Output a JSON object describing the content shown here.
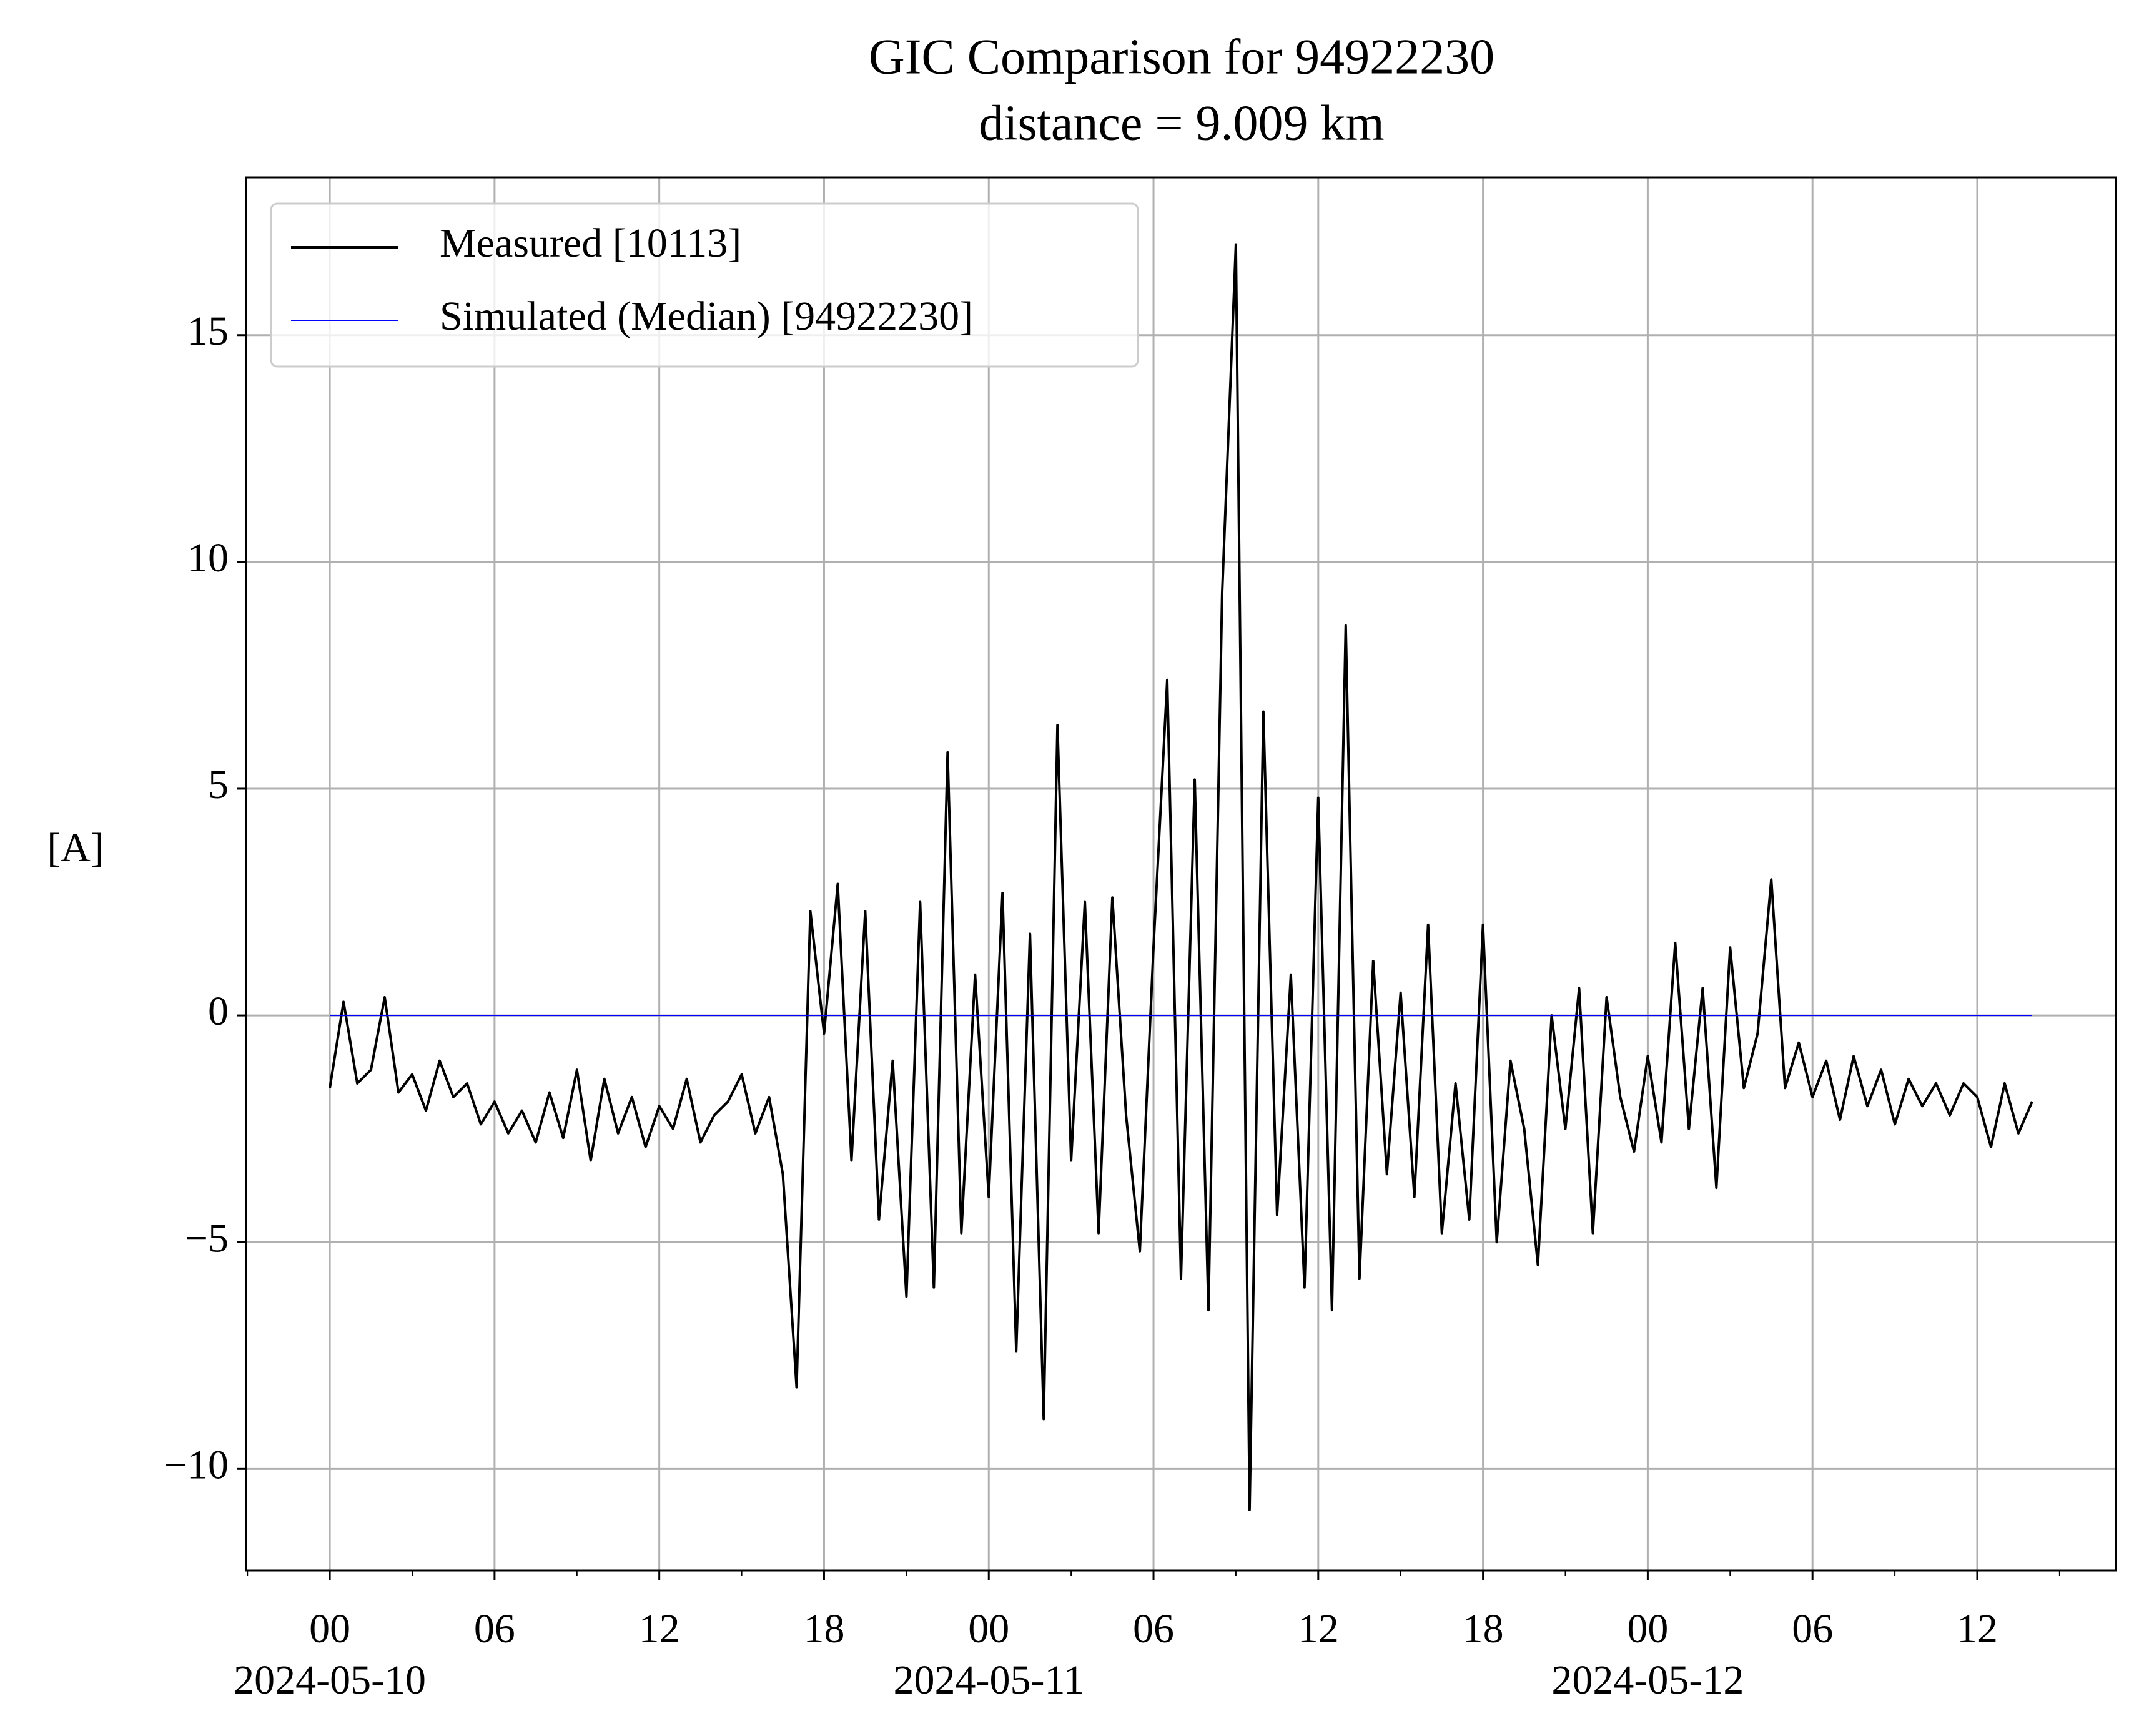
{
  "chart_data": {
    "type": "line",
    "title": "GIC Comparison for 94922230",
    "subtitle": "distance = 9.009 km",
    "ylabel": "[A]",
    "xlim": [
      -3.05,
      65.05
    ],
    "ylim": [
      -12.24,
      18.48
    ],
    "xticks": [
      {
        "value": 0,
        "label": "00"
      },
      {
        "value": 6,
        "label": "06"
      },
      {
        "value": 12,
        "label": "12"
      },
      {
        "value": 18,
        "label": "18"
      },
      {
        "value": 24,
        "label": "00"
      },
      {
        "value": 30,
        "label": "06"
      },
      {
        "value": 36,
        "label": "12"
      },
      {
        "value": 42,
        "label": "18"
      },
      {
        "value": 48,
        "label": "00"
      },
      {
        "value": 54,
        "label": "06"
      },
      {
        "value": 60,
        "label": "12"
      }
    ],
    "xtick_dates": [
      {
        "value": 0,
        "label": "2024-05-10"
      },
      {
        "value": 24,
        "label": "2024-05-11"
      },
      {
        "value": 48,
        "label": "2024-05-12"
      }
    ],
    "xminorticks": [
      -3,
      3,
      9,
      15,
      21,
      27,
      33,
      39,
      45,
      51,
      57,
      63
    ],
    "yticks": [
      {
        "value": -10,
        "label": "−10"
      },
      {
        "value": -5,
        "label": "−5"
      },
      0,
      5,
      10,
      15
    ],
    "grid": true,
    "legend": "upper left",
    "series": [
      {
        "name": "Measured [10113]",
        "color": "#000000",
        "x": [
          0,
          0.5,
          1,
          1.5,
          2,
          2.5,
          3,
          3.5,
          4,
          4.5,
          5,
          5.5,
          6,
          6.5,
          7,
          7.5,
          8,
          8.5,
          9,
          9.5,
          10,
          10.5,
          11,
          11.5,
          12,
          12.5,
          13,
          13.5,
          14,
          14.5,
          15,
          15.5,
          16,
          16.5,
          17,
          17.5,
          18,
          18.5,
          19,
          19.5,
          20,
          20.5,
          21,
          21.5,
          22,
          22.5,
          23,
          23.5,
          24,
          24.5,
          25,
          25.5,
          26,
          26.5,
          27,
          27.5,
          28,
          28.5,
          29,
          29.5,
          30,
          30.5,
          31,
          31.5,
          32,
          32.5,
          33,
          33.5,
          34,
          34.5,
          35,
          35.5,
          36,
          36.5,
          37,
          37.5,
          38,
          38.5,
          39,
          39.5,
          40,
          40.5,
          41,
          41.5,
          42,
          42.5,
          43,
          43.5,
          44,
          44.5,
          45,
          45.5,
          46,
          46.5,
          47,
          47.5,
          48,
          48.5,
          49,
          49.5,
          50,
          50.5,
          51,
          51.5,
          52,
          52.5,
          53,
          53.5,
          54,
          54.5,
          55,
          55.5,
          56,
          56.5,
          57,
          57.5,
          58,
          58.5,
          59,
          59.5,
          60,
          60.5,
          61,
          61.5,
          62
        ],
        "values": [
          -1.6,
          0.3,
          -1.5,
          -1.2,
          0.4,
          -1.7,
          -1.3,
          -2.1,
          -1.0,
          -1.8,
          -1.5,
          -2.4,
          -1.9,
          -2.6,
          -2.1,
          -2.8,
          -1.7,
          -2.7,
          -1.2,
          -3.2,
          -1.4,
          -2.6,
          -1.8,
          -2.9,
          -2.0,
          -2.5,
          -1.4,
          -2.8,
          -2.2,
          -1.9,
          -1.3,
          -2.6,
          -1.8,
          -3.5,
          -8.2,
          2.3,
          -0.4,
          2.9,
          -3.2,
          2.3,
          -4.5,
          -1.0,
          -6.2,
          2.5,
          -6.0,
          5.8,
          -4.8,
          0.9,
          -4.0,
          2.7,
          -7.4,
          1.8,
          -8.9,
          6.4,
          -3.2,
          2.5,
          -4.8,
          2.6,
          -2.2,
          -5.2,
          1.5,
          7.4,
          -5.8,
          5.2,
          -6.5,
          9.3,
          17.0,
          -10.9,
          6.7,
          -4.4,
          0.9,
          -6.0,
          4.8,
          -6.5,
          8.6,
          -5.8,
          1.2,
          -3.5,
          0.5,
          -4.0,
          2.0,
          -4.8,
          -1.5,
          -4.5,
          2.0,
          -5.0,
          -1.0,
          -2.5,
          -5.5,
          0.0,
          -2.5,
          0.6,
          -4.8,
          0.4,
          -1.8,
          -3.0,
          -0.9,
          -2.8,
          1.6,
          -2.5,
          0.6,
          -3.8,
          1.5,
          -1.6,
          -0.4,
          3.0,
          -1.6,
          -0.6,
          -1.8,
          -1.0,
          -2.3,
          -0.9,
          -2.0,
          -1.2,
          -2.4,
          -1.4,
          -2.0,
          -1.5,
          -2.2,
          -1.5,
          -1.8,
          -2.9,
          -1.5,
          -2.6,
          -1.9
        ]
      },
      {
        "name": "Simulated (Median) [94922230]",
        "color": "#0000ff",
        "x": [
          0,
          62
        ],
        "values": [
          0,
          0
        ]
      }
    ]
  }
}
